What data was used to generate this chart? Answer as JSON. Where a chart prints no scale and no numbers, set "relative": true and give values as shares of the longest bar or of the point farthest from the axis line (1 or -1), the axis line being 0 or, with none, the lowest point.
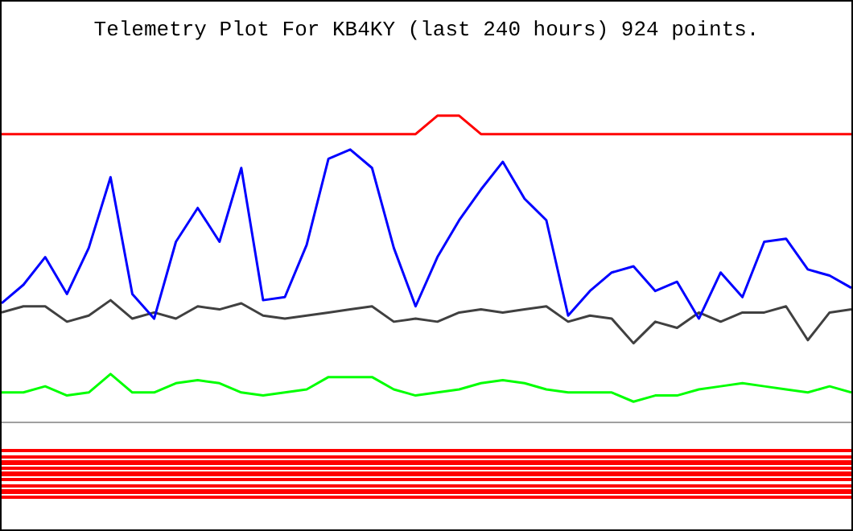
{
  "chart_data": {
    "type": "line",
    "title": "Telemetry Plot For KB4KY (last 240 hours) 924 points.",
    "relative": true,
    "legend": false,
    "grid": false,
    "categories": [
      null,
      null,
      null,
      null,
      null,
      null,
      null,
      null,
      null,
      null,
      null,
      null,
      null,
      null,
      null,
      null,
      null,
      null,
      null,
      null,
      null,
      null,
      null,
      null,
      null,
      null,
      null,
      null,
      null,
      null,
      null,
      null,
      null,
      null,
      null,
      null,
      null,
      null,
      null,
      null
    ],
    "series": [
      {
        "color": "#ff0000",
        "values": [
          0.94,
          0.94,
          0.94,
          0.94,
          0.94,
          0.94,
          0.94,
          0.94,
          0.94,
          0.94,
          0.94,
          0.94,
          0.94,
          0.94,
          0.94,
          0.94,
          0.94,
          0.94,
          0.94,
          0.94,
          1,
          1,
          0.94,
          0.94,
          0.94,
          0.94,
          0.94,
          0.94,
          0.94,
          0.94,
          0.94,
          0.94,
          0.94,
          0.94,
          0.94,
          0.94,
          0.94,
          0.94,
          0.94,
          0.94
        ]
      },
      {
        "color": "#0000ff",
        "values": [
          0.39,
          0.45,
          0.54,
          0.42,
          0.57,
          0.8,
          0.42,
          0.34,
          0.59,
          0.7,
          0.59,
          0.83,
          0.4,
          0.41,
          0.58,
          0.86,
          0.89,
          0.83,
          0.57,
          0.38,
          0.54,
          0.66,
          0.76,
          0.85,
          0.73,
          0.66,
          0.35,
          0.43,
          0.49,
          0.51,
          0.43,
          0.46,
          0.34,
          0.49,
          0.41,
          0.59,
          0.6,
          0.5,
          0.48,
          0.44
        ]
      },
      {
        "color": "#404040",
        "values": [
          0.36,
          0.38,
          0.38,
          0.33,
          0.35,
          0.4,
          0.34,
          0.36,
          0.34,
          0.38,
          0.37,
          0.39,
          0.35,
          0.34,
          0.35,
          0.36,
          0.37,
          0.38,
          0.33,
          0.34,
          0.33,
          0.36,
          0.37,
          0.36,
          0.37,
          0.38,
          0.33,
          0.35,
          0.34,
          0.26,
          0.33,
          0.31,
          0.36,
          0.33,
          0.36,
          0.36,
          0.38,
          0.27,
          0.36,
          0.37
        ]
      },
      {
        "color": "#00ff00",
        "values": [
          0.1,
          0.1,
          0.12,
          0.09,
          0.1,
          0.16,
          0.1,
          0.1,
          0.13,
          0.14,
          0.13,
          0.1,
          0.09,
          0.1,
          0.11,
          0.15,
          0.15,
          0.15,
          0.11,
          0.09,
          0.1,
          0.11,
          0.13,
          0.14,
          0.13,
          0.11,
          0.1,
          0.1,
          0.1,
          0.07,
          0.09,
          0.09,
          0.11,
          0.12,
          0.13,
          0.12,
          0.11,
          0.1,
          0.12,
          0.1
        ]
      }
    ]
  }
}
